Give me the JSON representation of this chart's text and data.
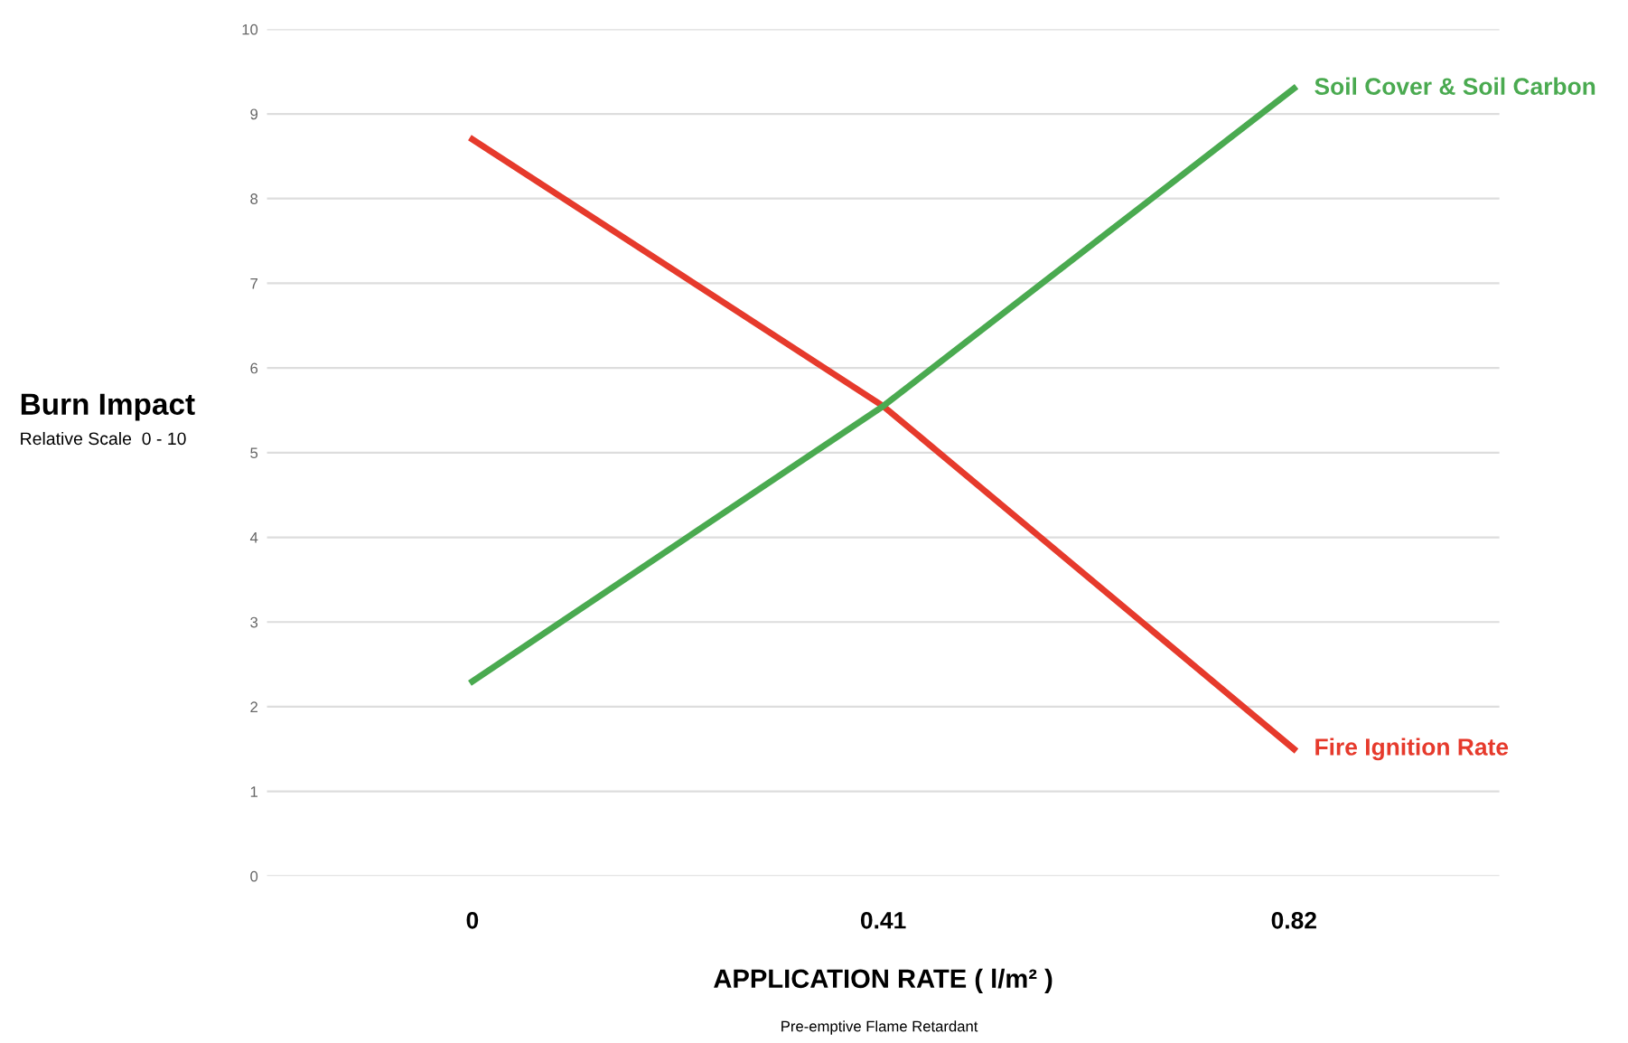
{
  "chart_data": {
    "type": "line",
    "categories": [
      "0",
      "0.41",
      "0.82"
    ],
    "series": [
      {
        "name": "Fire Ignition Rate",
        "color": "#e63a2c",
        "values": [
          8.7,
          5.55,
          1.5
        ]
      },
      {
        "name": "Soil Cover & Soil Carbon",
        "color": "#4aaa50",
        "values": [
          2.3,
          5.55,
          9.3
        ]
      }
    ],
    "ylabel": "Burn Impact",
    "xlabel": "APPLICATION RATE ( l/m² )",
    "annotations": [
      "Relative Scale  0 - 10",
      "Pre-emptive Flame Retardant"
    ],
    "ylim": [
      0,
      10
    ],
    "yticks": [
      0,
      1,
      2,
      3,
      4,
      5,
      6,
      7,
      8,
      9,
      10
    ],
    "grid": "y",
    "legend": false,
    "marker": "none",
    "line_style": "solid"
  }
}
